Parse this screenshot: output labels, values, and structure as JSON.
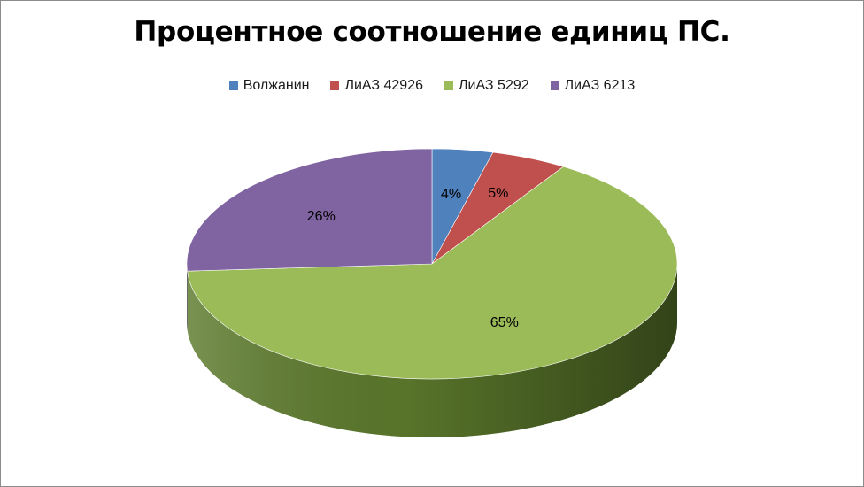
{
  "chart_data": {
    "type": "pie",
    "title": "Процентное соотношение единиц ПС.",
    "legend_position": "top",
    "categories": [
      "Волжанин",
      "ЛиАЗ 42926",
      "ЛиАЗ 5292",
      "ЛиАЗ 6213"
    ],
    "values": [
      4,
      5,
      65,
      26
    ],
    "data_labels": [
      "4%",
      "5%",
      "65%",
      "26%"
    ],
    "colors": [
      "#4f81bd",
      "#c0504d",
      "#9bbb59",
      "#8064a2"
    ],
    "side_colors": [
      "#3a5f8c",
      "#8f3b39",
      "#5c7a2c",
      "#5e4a78"
    ]
  }
}
